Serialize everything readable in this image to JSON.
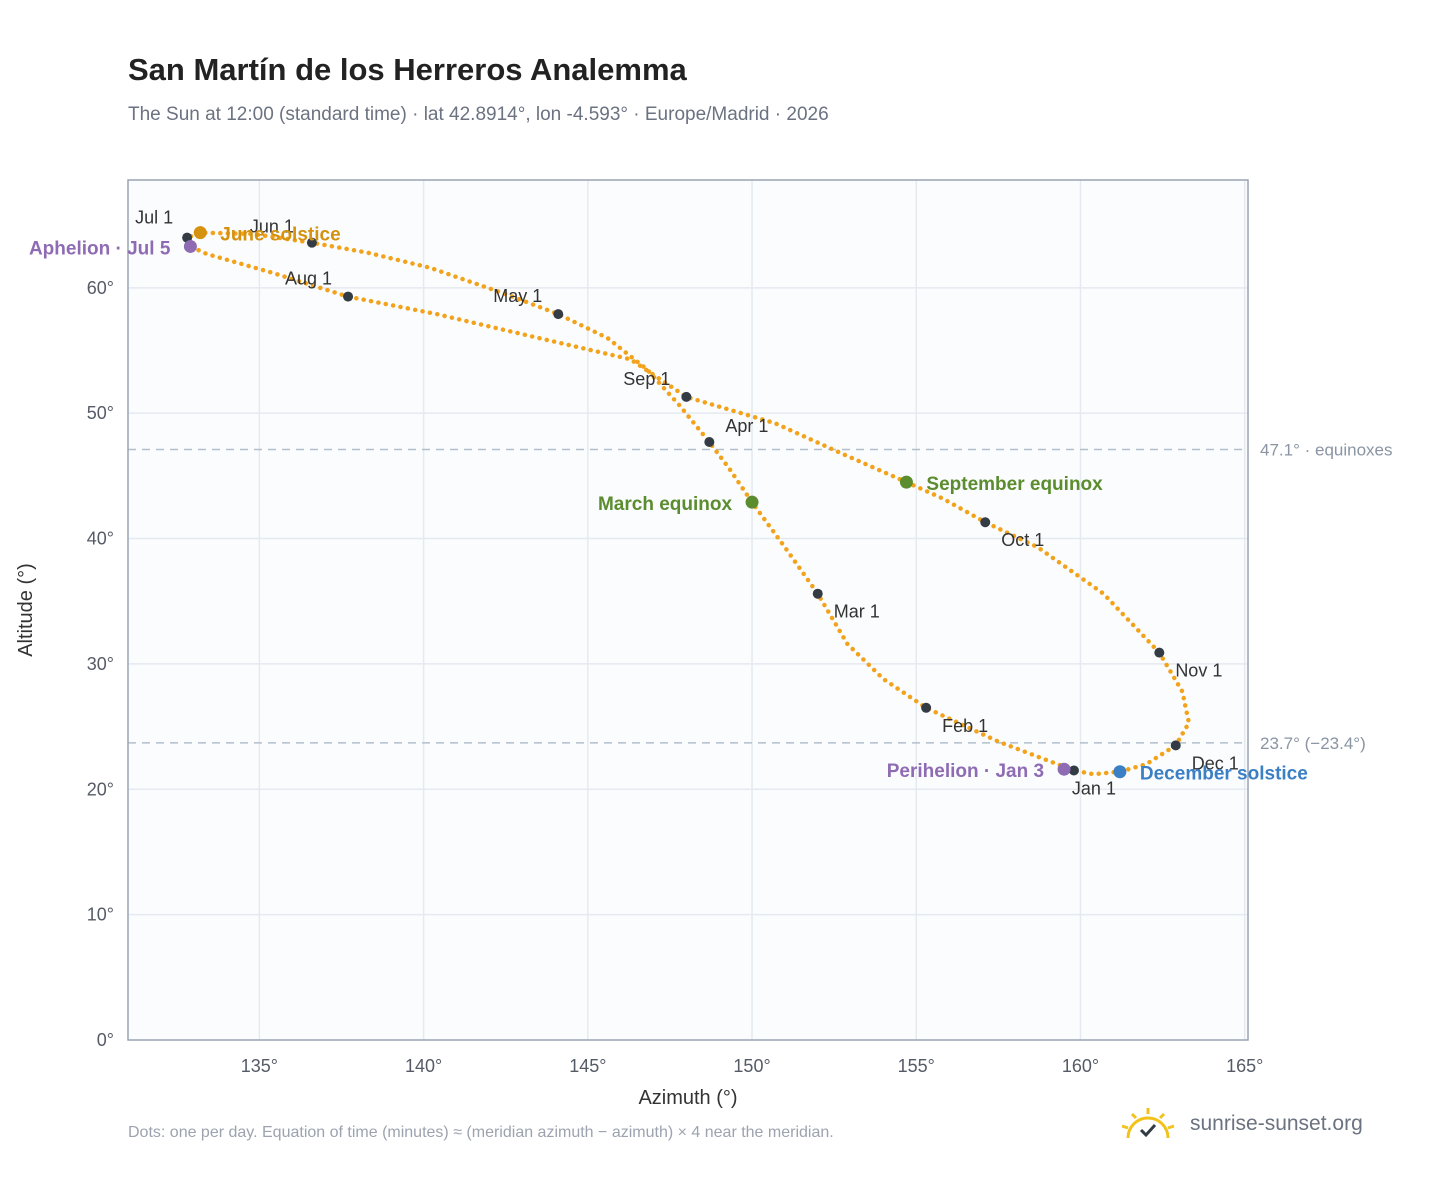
{
  "header": {
    "title": "San Martín de los Herreros Analemma",
    "subtitle": "The Sun at 12:00 (standard time) · lat 42.8914°, lon -4.593° · Europe/Madrid · 2026"
  },
  "footer": {
    "note": "Dots: one per day. Equation of time (minutes) ≈ (meridian azimuth − azimuth) × 4 near the meridian.",
    "brand": "sunrise-sunset.org"
  },
  "colors": {
    "curve": "#f2a31b",
    "month_marker": "#333b45",
    "aphelion": "#8e6bb3",
    "perihelion": "#8e6bb3",
    "june_solstice": "#d4920f",
    "december_solstice": "#3b7fc4",
    "equinox": "#5b8c2e",
    "reference_line": "#b4bfcc",
    "plot_bg": "#fafcfe",
    "grid": "#e5eaf0",
    "axis": "#9aa4b2"
  },
  "chart_data": {
    "type": "scatter",
    "xlabel": "Azimuth (°)",
    "ylabel": "Altitude (°)",
    "xlim": [
      131,
      165.1
    ],
    "ylim": [
      0,
      68.6
    ],
    "x_ticks": [
      135,
      140,
      145,
      150,
      155,
      160,
      165
    ],
    "x_tick_labels": [
      "135°",
      "140°",
      "145°",
      "150°",
      "155°",
      "160°",
      "165°"
    ],
    "y_ticks": [
      0,
      10,
      20,
      30,
      40,
      50,
      60
    ],
    "y_tick_labels": [
      "0°",
      "10°",
      "20°",
      "30°",
      "40°",
      "50°",
      "60°"
    ],
    "grid": true,
    "series_path": [
      [
        159.8,
        21.5
      ],
      [
        157.5,
        23.8
      ],
      [
        155.3,
        26.5
      ],
      [
        154.0,
        28.8
      ],
      [
        152.9,
        31.6
      ],
      [
        152.0,
        35.6
      ],
      [
        151.0,
        39.3
      ],
      [
        150.0,
        42.9
      ],
      [
        149.3,
        45.6
      ],
      [
        148.7,
        47.7
      ],
      [
        147.8,
        50.6
      ],
      [
        146.8,
        53.5
      ],
      [
        145.6,
        56.0
      ],
      [
        144.1,
        57.9
      ],
      [
        142.5,
        59.5
      ],
      [
        140.2,
        61.6
      ],
      [
        138.3,
        62.8
      ],
      [
        136.6,
        63.6
      ],
      [
        134.8,
        64.3
      ],
      [
        133.2,
        64.4
      ],
      [
        132.8,
        64.0
      ],
      [
        132.9,
        63.3
      ],
      [
        133.4,
        62.7
      ],
      [
        135.4,
        61.2
      ],
      [
        137.7,
        59.3
      ],
      [
        140.4,
        57.9
      ],
      [
        143.5,
        56.0
      ],
      [
        146.3,
        54.3
      ],
      [
        148.0,
        51.3
      ],
      [
        150.7,
        49.2
      ],
      [
        152.8,
        46.7
      ],
      [
        154.7,
        44.5
      ],
      [
        155.8,
        43.2
      ],
      [
        157.1,
        41.3
      ],
      [
        158.7,
        39.3
      ],
      [
        160.7,
        35.6
      ],
      [
        162.4,
        30.9
      ],
      [
        163.1,
        27.8
      ],
      [
        163.3,
        25.3
      ],
      [
        162.9,
        23.5
      ],
      [
        162.0,
        22.0
      ],
      [
        161.2,
        21.4
      ],
      [
        160.4,
        21.2
      ],
      [
        159.8,
        21.5
      ]
    ],
    "month_markers": [
      {
        "label": "Jan 1",
        "az": 159.8,
        "alt": 21.5
      },
      {
        "label": "Feb 1",
        "az": 155.3,
        "alt": 26.5
      },
      {
        "label": "Mar 1",
        "az": 152.0,
        "alt": 35.6
      },
      {
        "label": "Apr 1",
        "az": 148.7,
        "alt": 47.7
      },
      {
        "label": "May 1",
        "az": 144.1,
        "alt": 57.9
      },
      {
        "label": "Jun 1",
        "az": 136.6,
        "alt": 63.6
      },
      {
        "label": "Jul 1",
        "az": 132.8,
        "alt": 64.0
      },
      {
        "label": "Aug 1",
        "az": 137.7,
        "alt": 59.3
      },
      {
        "label": "Sep 1",
        "az": 148.0,
        "alt": 51.3
      },
      {
        "label": "Oct 1",
        "az": 157.1,
        "alt": 41.3
      },
      {
        "label": "Nov 1",
        "az": 162.4,
        "alt": 30.9
      },
      {
        "label": "Dec 1",
        "az": 162.9,
        "alt": 23.5
      }
    ],
    "events": [
      {
        "label": "Aphelion · Jul 5",
        "az": 132.9,
        "alt": 63.3,
        "color_key": "aphelion"
      },
      {
        "label": "June solstice",
        "az": 133.2,
        "alt": 64.4,
        "color_key": "june_solstice"
      },
      {
        "label": "March equinox",
        "az": 150.0,
        "alt": 42.9,
        "color_key": "equinox"
      },
      {
        "label": "September equinox",
        "az": 154.7,
        "alt": 44.5,
        "color_key": "equinox"
      },
      {
        "label": "Perihelion · Jan 3",
        "az": 159.5,
        "alt": 21.6,
        "color_key": "perihelion"
      },
      {
        "label": "December solstice",
        "az": 161.2,
        "alt": 21.4,
        "color_key": "december_solstice"
      }
    ],
    "reference_lines": [
      {
        "alt": 47.1,
        "label": "47.1° · equinoxes"
      },
      {
        "alt": 23.7,
        "label": "23.7° (−23.4°)"
      }
    ]
  }
}
